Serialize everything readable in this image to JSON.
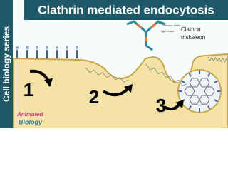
{
  "header": {
    "title": "Clathrin mediated endocytosis",
    "side_label": "Cell biology series"
  },
  "diagram": {
    "triskeleon": {
      "label_line1": "Clathrin",
      "label_line2": "triskeleon",
      "heavy_chain": "heavy chain",
      "light_chain": "light chain"
    },
    "steps": [
      "1",
      "2",
      "3"
    ]
  },
  "logo": {
    "line1": "Animated",
    "line2": "Biology"
  }
}
